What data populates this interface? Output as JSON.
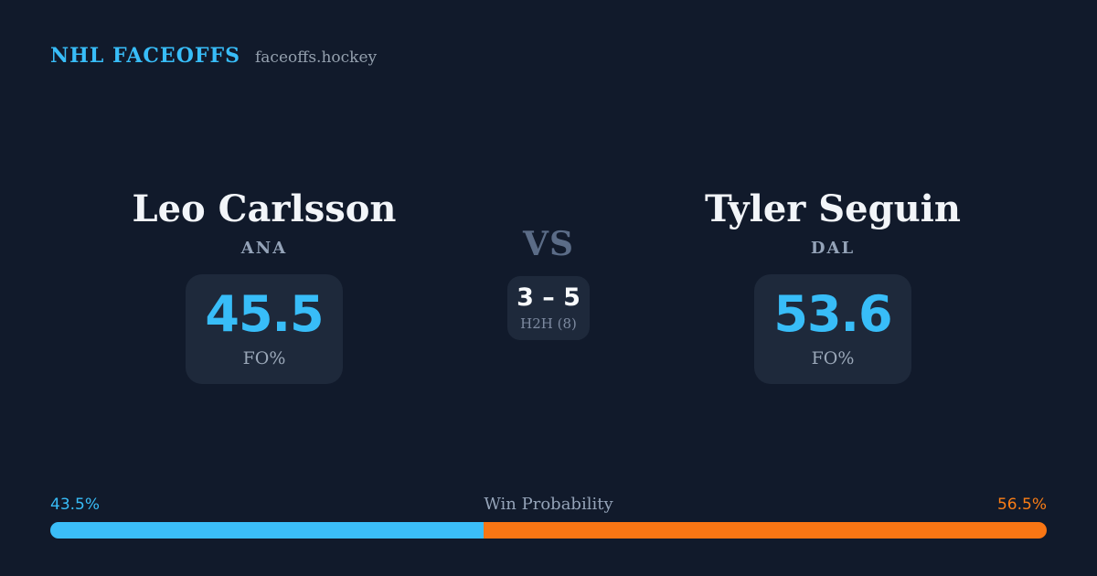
{
  "header": {
    "brand": "NHL FACEOFFS",
    "site": "faceoffs.hockey"
  },
  "matchup": {
    "vs_label": "VS",
    "players": [
      {
        "name": "Leo Carlsson",
        "team": "ANA",
        "stat_value": "45.5",
        "stat_label": "FO%"
      },
      {
        "name": "Tyler Seguin",
        "team": "DAL",
        "stat_value": "53.6",
        "stat_label": "FO%"
      }
    ],
    "h2h": {
      "score": "3 – 5",
      "label": "H2H (8)",
      "meetings": 8
    }
  },
  "win_probability": {
    "title": "Win Probability",
    "left_label": "43.5%",
    "right_label": "56.5%",
    "left_pct": 43.5,
    "right_pct": 56.5
  },
  "colors": {
    "background": "#111a2b",
    "card": "#1e293b",
    "accent_blue": "#38bdf8",
    "accent_orange": "#f97614",
    "text_primary": "#f2f5f9",
    "text_muted": "#94a3b8",
    "vs_text": "#5b6c87"
  },
  "chart_data": [
    {
      "type": "bar",
      "title": "Faceoff Percentage (FO%)",
      "categories": [
        "Leo Carlsson (ANA)",
        "Tyler Seguin (DAL)"
      ],
      "values": [
        45.5,
        53.6
      ],
      "unit": "%"
    },
    {
      "type": "bar",
      "title": "Win Probability",
      "categories": [
        "Leo Carlsson (ANA)",
        "Tyler Seguin (DAL)"
      ],
      "values": [
        43.5,
        56.5
      ],
      "unit": "%",
      "note": "rendered as single stacked horizontal bar, blue vs orange",
      "extra": "Head-to-head record 3 – 5 over 8 meetings"
    }
  ]
}
